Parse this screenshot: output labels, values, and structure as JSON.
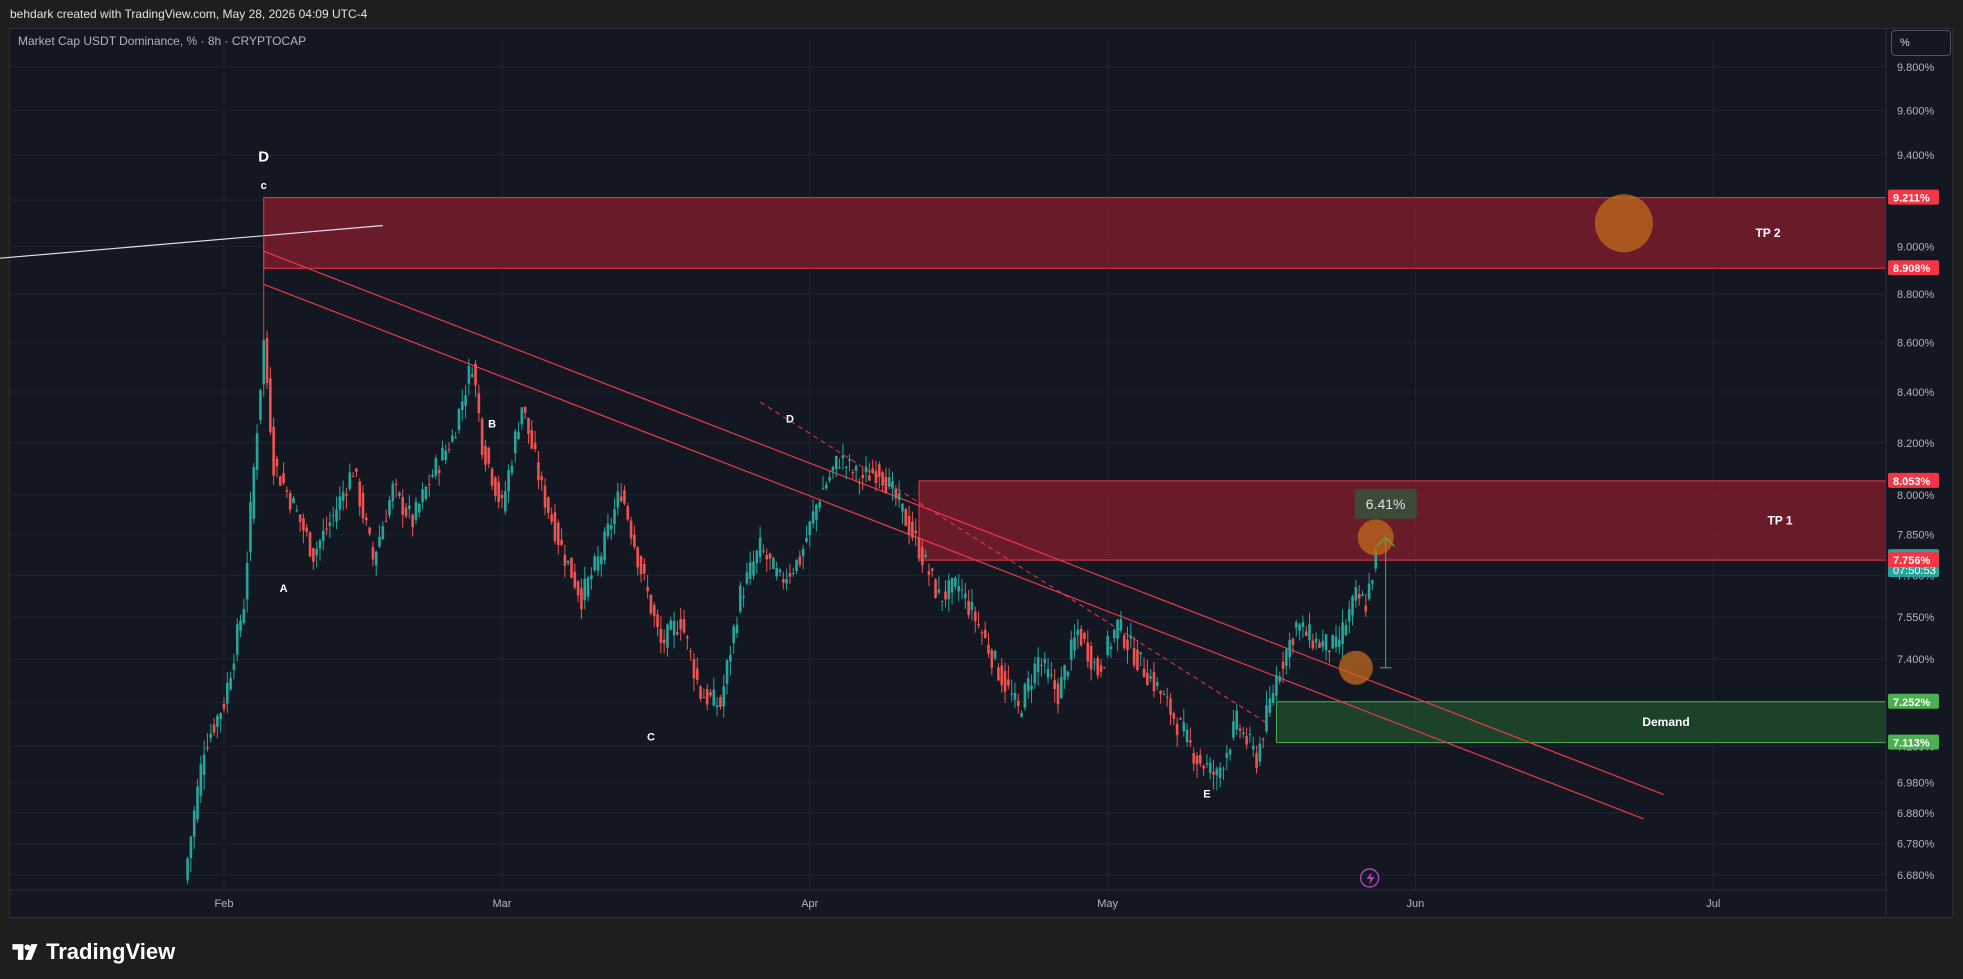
{
  "header": {
    "attribution": "behdark created with TradingView.com, May 28, 2026 04:09 UTC-4",
    "symbol": "Market Cap USDT Dominance, % · 8h · CRYPTOCAP",
    "scale_button": "%"
  },
  "brand": {
    "name": "TradingView"
  },
  "colors": {
    "background": "#131722",
    "up": "#26a69a",
    "down": "#ef5350",
    "supply_zone": "#7a1c2b",
    "demand_zone": "#1f4a2a",
    "trendline": "#f23645",
    "marker": "#c26a1b"
  },
  "chart_data": {
    "type": "candlestick",
    "ylim": [
      6.6,
      10.0
    ],
    "log_scale": true,
    "y_ticks": [
      "9.800%",
      "9.600%",
      "9.400%",
      "9.200%",
      "9.000%",
      "8.800%",
      "8.600%",
      "8.400%",
      "8.200%",
      "8.000%",
      "7.850%",
      "7.700%",
      "7.550%",
      "7.400%",
      "7.250%",
      "7.100%",
      "6.980%",
      "6.880%",
      "6.780%",
      "6.680%"
    ],
    "x_ticks": [
      "Feb",
      "Mar",
      "Apr",
      "May",
      "Jun",
      "Jul"
    ],
    "price_labels": [
      {
        "text": "9.211%",
        "value": 9.211,
        "color": "#f23645"
      },
      {
        "text": "8.908%",
        "value": 8.908,
        "color": "#f23645"
      },
      {
        "text": "8.053%",
        "value": 8.053,
        "color": "#f23645"
      },
      {
        "text": "7.767%",
        "value": 7.767,
        "color": "#26a69a",
        "countdown": "07:50:53"
      },
      {
        "text": "7.756%",
        "value": 7.756,
        "color": "#f23645"
      },
      {
        "text": "7.252%",
        "value": 7.252,
        "color": "#4caf50"
      },
      {
        "text": "7.113%",
        "value": 7.113,
        "color": "#4caf50"
      }
    ],
    "zones": [
      {
        "label": "TP 2",
        "top": 9.211,
        "bottom": 8.908,
        "start": "2026-02-05",
        "kind": "supply"
      },
      {
        "label": "TP 1",
        "top": 8.053,
        "bottom": 7.756,
        "start": "2026-04-12",
        "kind": "supply"
      },
      {
        "label": "Demand",
        "top": 7.252,
        "bottom": 7.113,
        "start": "2026-05-18",
        "kind": "demand"
      }
    ],
    "wave_labels": [
      {
        "text": "D",
        "date": "2026-02-05",
        "value": 9.37,
        "size": "big"
      },
      {
        "text": "c",
        "date": "2026-02-05",
        "value": 9.25,
        "size": "small"
      },
      {
        "text": "A",
        "date": "2026-02-07",
        "value": 7.64,
        "size": "small"
      },
      {
        "text": "B",
        "date": "2026-02-28",
        "value": 8.26,
        "size": "small"
      },
      {
        "text": "C",
        "date": "2026-03-16",
        "value": 7.12,
        "size": "small"
      },
      {
        "text": "D",
        "date": "2026-03-30",
        "value": 8.28,
        "size": "small"
      },
      {
        "text": "E",
        "date": "2026-05-11",
        "value": 6.93,
        "size": "small"
      }
    ],
    "measure": {
      "label": "6.41%",
      "date": "2026-05-29",
      "from": 7.37,
      "to": 7.84
    },
    "points": [
      [
        "2026-01-28",
        6.66
      ],
      [
        "2026-01-30",
        7.1
      ],
      [
        "2026-02-01",
        7.25
      ],
      [
        "2026-02-03",
        7.6
      ],
      [
        "2026-02-05",
        8.6
      ],
      [
        "2026-02-06",
        8.12
      ],
      [
        "2026-02-08",
        7.96
      ],
      [
        "2026-02-10",
        7.78
      ],
      [
        "2026-02-12",
        7.92
      ],
      [
        "2026-02-14",
        8.1
      ],
      [
        "2026-02-16",
        7.76
      ],
      [
        "2026-02-18",
        8.02
      ],
      [
        "2026-02-20",
        7.9
      ],
      [
        "2026-02-22",
        8.08
      ],
      [
        "2026-02-24",
        8.22
      ],
      [
        "2026-02-26",
        8.52
      ],
      [
        "2026-02-27",
        8.2
      ],
      [
        "2026-03-01",
        7.95
      ],
      [
        "2026-03-03",
        8.35
      ],
      [
        "2026-03-05",
        8.02
      ],
      [
        "2026-03-07",
        7.8
      ],
      [
        "2026-03-09",
        7.62
      ],
      [
        "2026-03-11",
        7.78
      ],
      [
        "2026-03-13",
        8.02
      ],
      [
        "2026-03-15",
        7.72
      ],
      [
        "2026-03-17",
        7.45
      ],
      [
        "2026-03-19",
        7.54
      ],
      [
        "2026-03-21",
        7.28
      ],
      [
        "2026-03-23",
        7.24
      ],
      [
        "2026-03-25",
        7.63
      ],
      [
        "2026-03-27",
        7.8
      ],
      [
        "2026-03-29",
        7.68
      ],
      [
        "2026-03-31",
        7.76
      ],
      [
        "2026-04-02",
        8.0
      ],
      [
        "2026-04-04",
        8.14
      ],
      [
        "2026-04-06",
        8.06
      ],
      [
        "2026-04-08",
        8.1
      ],
      [
        "2026-04-10",
        7.96
      ],
      [
        "2026-04-12",
        7.8
      ],
      [
        "2026-04-14",
        7.62
      ],
      [
        "2026-04-16",
        7.66
      ],
      [
        "2026-04-18",
        7.52
      ],
      [
        "2026-04-20",
        7.36
      ],
      [
        "2026-04-22",
        7.22
      ],
      [
        "2026-04-24",
        7.4
      ],
      [
        "2026-04-26",
        7.28
      ],
      [
        "2026-04-28",
        7.5
      ],
      [
        "2026-04-30",
        7.36
      ],
      [
        "2026-05-02",
        7.52
      ],
      [
        "2026-05-04",
        7.4
      ],
      [
        "2026-05-06",
        7.3
      ],
      [
        "2026-05-08",
        7.18
      ],
      [
        "2026-05-10",
        7.06
      ],
      [
        "2026-05-12",
        7.0
      ],
      [
        "2026-05-14",
        7.18
      ],
      [
        "2026-05-16",
        7.06
      ],
      [
        "2026-05-18",
        7.34
      ],
      [
        "2026-05-20",
        7.52
      ],
      [
        "2026-05-22",
        7.46
      ],
      [
        "2026-05-24",
        7.44
      ],
      [
        "2026-05-26",
        7.62
      ],
      [
        "2026-05-27",
        7.6
      ],
      [
        "2026-05-28",
        7.767
      ]
    ]
  }
}
